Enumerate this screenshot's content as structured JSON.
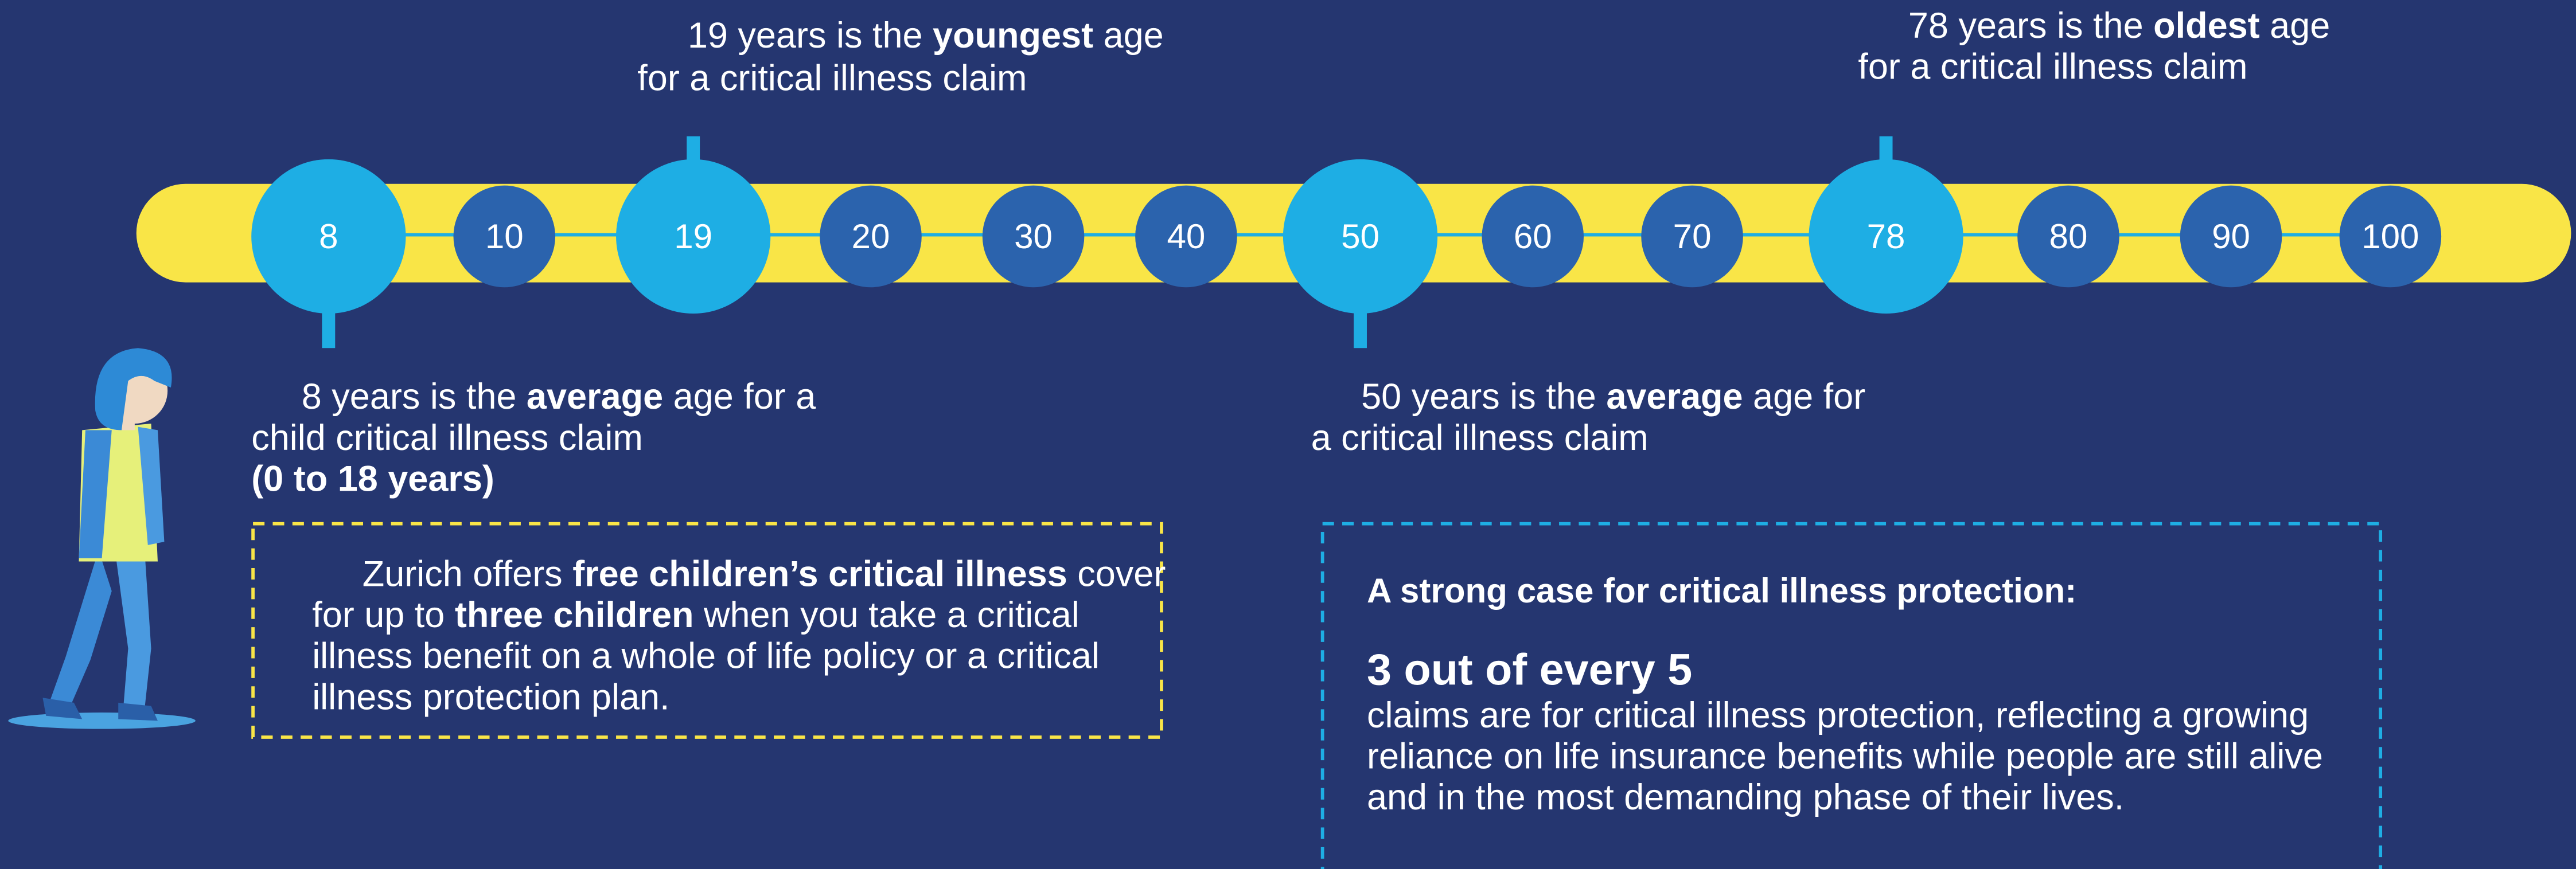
{
  "timeline": {
    "markers": [
      8,
      10,
      19,
      20,
      30,
      40,
      50,
      60,
      70,
      78,
      80,
      90,
      100
    ]
  },
  "callouts": {
    "youngest": {
      "line1": [
        "19 years is the ",
        "youngest",
        " age"
      ],
      "line2": "for a critical illness claim"
    },
    "oldest": {
      "line1": [
        "78 years is the ",
        "oldest",
        " age"
      ],
      "line2": "for a critical illness claim"
    },
    "child_average": {
      "line1": [
        "8 years is the ",
        "average",
        " age for a"
      ],
      "line2": "child critical illness claim",
      "line3": "(0 to 18 years)"
    },
    "adult_average": {
      "line1": [
        "50 years is the ",
        "average",
        " age for"
      ],
      "line2": "a critical illness claim"
    }
  },
  "children_cover": {
    "lines": [
      [
        "Zurich offers ",
        "free children’s critical illness",
        " cover"
      ],
      [
        "for up to ",
        "three children",
        " when you take a critical"
      ],
      [
        "illness benefit on a whole of life policy or a critical"
      ],
      [
        "illness protection plan."
      ]
    ]
  },
  "strong_case": {
    "heading": "A strong case for critical illness protection:",
    "stat": "3 out of every 5",
    "lines": [
      "claims are for critical illness protection, reflecting a growing",
      "reliance on life insurance benefits while people are still alive",
      "and in the most demanding phase of their lives."
    ]
  }
}
